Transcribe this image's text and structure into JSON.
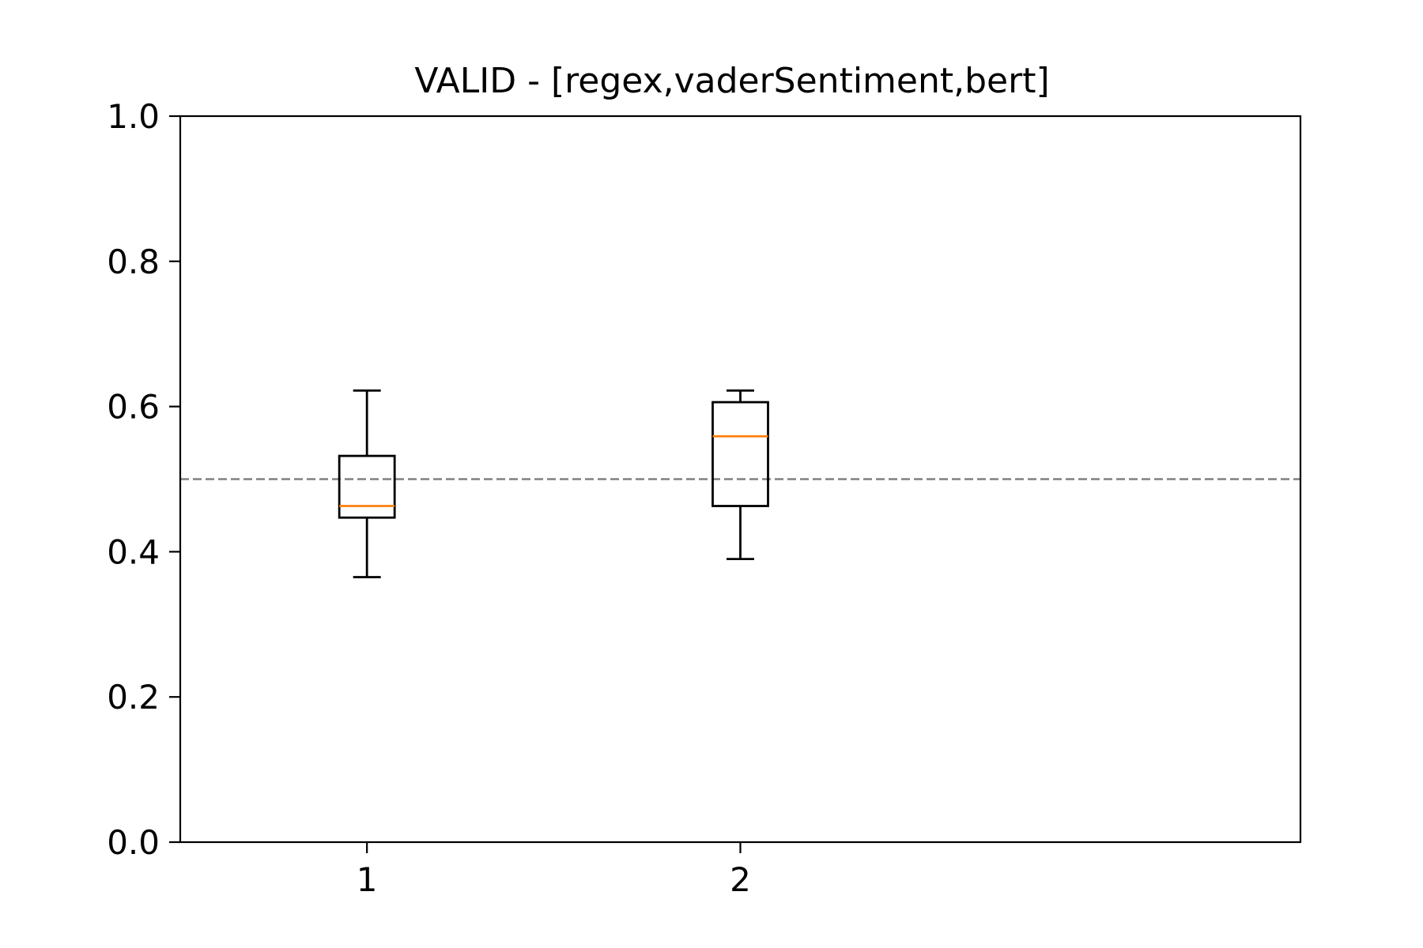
{
  "chart_data": {
    "type": "box",
    "title": "VALID - [regex,vaderSentiment,bert]",
    "xlabel": "",
    "ylabel": "",
    "ylim": [
      0.0,
      1.0
    ],
    "xlim": [
      0.5,
      3.5
    ],
    "y_ticks": [
      "0.0",
      "0.2",
      "0.4",
      "0.6",
      "0.8",
      "1.0"
    ],
    "x_ticks": [
      "1",
      "2"
    ],
    "grid": false,
    "reference_line": {
      "value": 0.5,
      "style": "dashed",
      "color": "#808080"
    },
    "series": [
      {
        "position": 1,
        "whisker_low": 0.365,
        "q1": 0.447,
        "median": 0.463,
        "q3": 0.532,
        "whisker_high": 0.622
      },
      {
        "position": 2,
        "whisker_low": 0.39,
        "q1": 0.463,
        "median": 0.559,
        "q3": 0.606,
        "whisker_high": 0.622
      }
    ],
    "colors": {
      "box": "#000000",
      "median": "#ff7f0e",
      "axes": "#000000"
    }
  }
}
